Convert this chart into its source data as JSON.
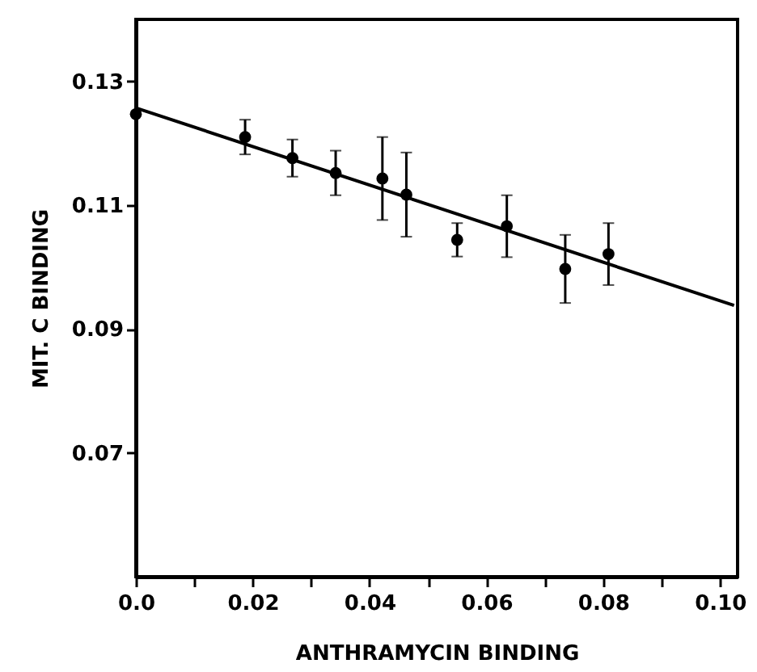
{
  "chart_data": {
    "type": "scatter",
    "xlabel": "ANTHRAMYCIN  BINDING",
    "ylabel": "MIT. C  BINDING",
    "xlim": [
      0,
      0.103
    ],
    "ylim": [
      0.05,
      0.14
    ],
    "xticks": [
      {
        "value": 0,
        "label": "0.0"
      },
      {
        "value": 0.01,
        "label": null
      },
      {
        "value": 0.02,
        "label": "0.02"
      },
      {
        "value": 0.03,
        "label": null
      },
      {
        "value": 0.04,
        "label": "0.04"
      },
      {
        "value": 0.05,
        "label": null
      },
      {
        "value": 0.06,
        "label": "0.06"
      },
      {
        "value": 0.07,
        "label": null
      },
      {
        "value": 0.08,
        "label": "0.08"
      },
      {
        "value": 0.09,
        "label": null
      },
      {
        "value": 0.1,
        "label": "0.10"
      }
    ],
    "yticks": [
      0.07,
      0.09,
      0.11,
      0.13
    ],
    "grid": false,
    "marker": "circle",
    "series": [
      {
        "type": "scatter",
        "color": "#000000",
        "x": [
          0,
          0.0187,
          0.0268,
          0.0342,
          0.0422,
          0.0463,
          0.055,
          0.0635,
          0.0735,
          0.0809
        ],
        "values": [
          0.1247,
          0.121,
          0.1176,
          0.1152,
          0.1143,
          0.1117,
          0.1044,
          0.1066,
          0.0997,
          0.1021
        ],
        "errors": [
          null,
          0.0028,
          0.003,
          0.0036,
          0.0067,
          0.0068,
          0.0027,
          0.005,
          0.0055,
          0.005
        ]
      },
      {
        "type": "line",
        "marker": "none",
        "color": "#000000",
        "x": [
          0,
          0.1024
        ],
        "values": [
          0.1257,
          0.0938
        ]
      }
    ]
  }
}
